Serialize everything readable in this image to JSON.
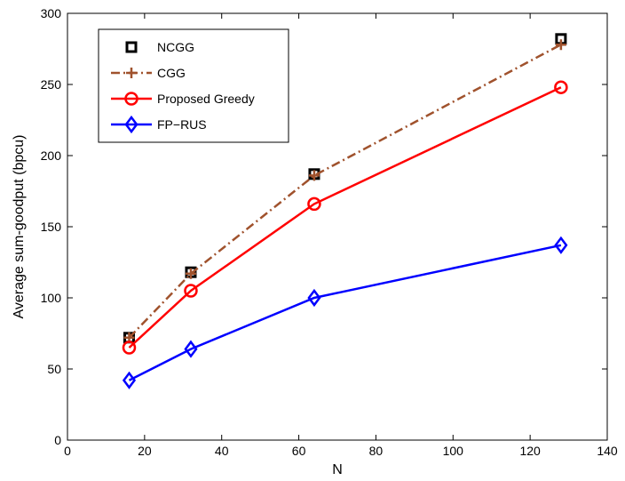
{
  "chart_data": {
    "type": "line",
    "xlabel": "N",
    "ylabel": "Average sum-goodput (bpcu)",
    "xlim": [
      0,
      140
    ],
    "ylim": [
      0,
      300
    ],
    "xticks": [
      "0",
      "20",
      "40",
      "60",
      "80",
      "100",
      "120",
      "140"
    ],
    "yticks": [
      "0",
      "50",
      "100",
      "150",
      "200",
      "250",
      "300"
    ],
    "grid": false,
    "legend_position": "top-left",
    "x": [
      16,
      32,
      64,
      128
    ],
    "series": [
      {
        "name": "NCGG",
        "values": [
          72,
          118,
          187,
          282
        ],
        "color": "#000000",
        "line": "none",
        "marker": "square"
      },
      {
        "name": "CGG",
        "values": [
          72,
          117,
          186,
          278
        ],
        "color": "#a0522d",
        "line": "dashdot",
        "marker": "plus"
      },
      {
        "name": "Proposed Greedy",
        "values": [
          65,
          105,
          166,
          248
        ],
        "color": "#ff0000",
        "line": "solid",
        "marker": "circle"
      },
      {
        "name": "FP−RUS",
        "values": [
          42,
          64,
          100,
          137
        ],
        "color": "#0000ff",
        "line": "solid",
        "marker": "diamond"
      }
    ]
  }
}
